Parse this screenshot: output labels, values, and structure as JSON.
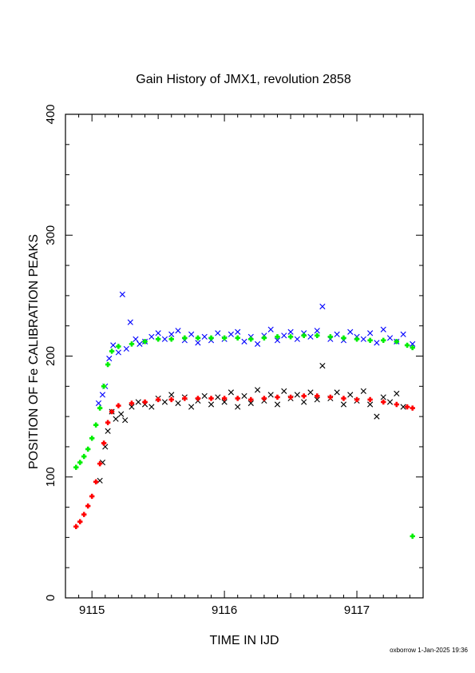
{
  "chart_data": {
    "type": "scatter",
    "title": "Gain History of JMX1, revolution 2858",
    "xlabel": "TIME IN IJD",
    "ylabel": "POSITION OF Fe CALIBRATION PEAKS",
    "xlim": [
      9114.8,
      9117.5
    ],
    "ylim": [
      0,
      400
    ],
    "x_ticks": [
      9115,
      9116,
      9117
    ],
    "x_tick_labels": [
      "9115",
      "9116",
      "9117"
    ],
    "y_ticks": [
      0,
      100,
      200,
      300,
      400
    ],
    "y_tick_labels": [
      "0",
      "100",
      "200",
      "300",
      "400"
    ],
    "grid": false,
    "legend": "none",
    "series": [
      {
        "marker": "x",
        "color": "#0000ff",
        "points": [
          [
            9115.05,
            161
          ],
          [
            9115.08,
            168
          ],
          [
            9115.1,
            175
          ],
          [
            9115.13,
            198
          ],
          [
            9115.16,
            209
          ],
          [
            9115.2,
            203
          ],
          [
            9115.23,
            251
          ],
          [
            9115.26,
            206
          ],
          [
            9115.29,
            228
          ],
          [
            9115.33,
            214
          ],
          [
            9115.36,
            210
          ],
          [
            9115.4,
            212
          ],
          [
            9115.45,
            216
          ],
          [
            9115.5,
            219
          ],
          [
            9115.55,
            214
          ],
          [
            9115.6,
            218
          ],
          [
            9115.65,
            221
          ],
          [
            9115.7,
            213
          ],
          [
            9115.75,
            218
          ],
          [
            9115.8,
            211
          ],
          [
            9115.85,
            216
          ],
          [
            9115.9,
            213
          ],
          [
            9115.95,
            219
          ],
          [
            9116.0,
            214
          ],
          [
            9116.05,
            218
          ],
          [
            9116.1,
            220
          ],
          [
            9116.15,
            212
          ],
          [
            9116.2,
            216
          ],
          [
            9116.25,
            210
          ],
          [
            9116.3,
            217
          ],
          [
            9116.35,
            222
          ],
          [
            9116.4,
            213
          ],
          [
            9116.45,
            217
          ],
          [
            9116.5,
            220
          ],
          [
            9116.55,
            214
          ],
          [
            9116.6,
            219
          ],
          [
            9116.65,
            216
          ],
          [
            9116.7,
            221
          ],
          [
            9116.74,
            241
          ],
          [
            9116.8,
            214
          ],
          [
            9116.85,
            218
          ],
          [
            9116.9,
            213
          ],
          [
            9116.95,
            220
          ],
          [
            9117.0,
            216
          ],
          [
            9117.05,
            214
          ],
          [
            9117.1,
            219
          ],
          [
            9117.15,
            211
          ],
          [
            9117.2,
            222
          ],
          [
            9117.25,
            215
          ],
          [
            9117.3,
            212
          ],
          [
            9117.35,
            218
          ],
          [
            9117.42,
            210
          ]
        ]
      },
      {
        "marker": "x",
        "color": "#000000",
        "points": [
          [
            9115.06,
            97
          ],
          [
            9115.08,
            112
          ],
          [
            9115.1,
            125
          ],
          [
            9115.12,
            138
          ],
          [
            9115.15,
            154
          ],
          [
            9115.18,
            148
          ],
          [
            9115.22,
            152
          ],
          [
            9115.25,
            147
          ],
          [
            9115.3,
            158
          ],
          [
            9115.35,
            162
          ],
          [
            9115.4,
            160
          ],
          [
            9115.45,
            158
          ],
          [
            9115.5,
            165
          ],
          [
            9115.55,
            162
          ],
          [
            9115.6,
            168
          ],
          [
            9115.65,
            161
          ],
          [
            9115.7,
            166
          ],
          [
            9115.75,
            158
          ],
          [
            9115.8,
            163
          ],
          [
            9115.85,
            167
          ],
          [
            9115.9,
            160
          ],
          [
            9115.95,
            166
          ],
          [
            9116.0,
            162
          ],
          [
            9116.05,
            170
          ],
          [
            9116.1,
            158
          ],
          [
            9116.15,
            167
          ],
          [
            9116.2,
            161
          ],
          [
            9116.25,
            172
          ],
          [
            9116.3,
            163
          ],
          [
            9116.35,
            168
          ],
          [
            9116.4,
            160
          ],
          [
            9116.45,
            171
          ],
          [
            9116.5,
            165
          ],
          [
            9116.55,
            168
          ],
          [
            9116.6,
            162
          ],
          [
            9116.65,
            170
          ],
          [
            9116.7,
            164
          ],
          [
            9116.74,
            192
          ],
          [
            9116.8,
            165
          ],
          [
            9116.85,
            170
          ],
          [
            9116.9,
            160
          ],
          [
            9116.95,
            168
          ],
          [
            9117.0,
            163
          ],
          [
            9117.05,
            171
          ],
          [
            9117.1,
            160
          ],
          [
            9117.15,
            150
          ],
          [
            9117.2,
            166
          ],
          [
            9117.25,
            162
          ],
          [
            9117.3,
            169
          ],
          [
            9117.35,
            158
          ]
        ]
      },
      {
        "marker": "+",
        "color": "#00ee00",
        "points": [
          [
            9114.88,
            108
          ],
          [
            9114.91,
            112
          ],
          [
            9114.94,
            117
          ],
          [
            9114.97,
            123
          ],
          [
            9115.0,
            132
          ],
          [
            9115.03,
            143
          ],
          [
            9115.06,
            157
          ],
          [
            9115.09,
            175
          ],
          [
            9115.12,
            193
          ],
          [
            9115.15,
            204
          ],
          [
            9115.2,
            208
          ],
          [
            9115.3,
            210
          ],
          [
            9115.4,
            212
          ],
          [
            9115.5,
            214
          ],
          [
            9115.6,
            214
          ],
          [
            9115.7,
            215
          ],
          [
            9115.8,
            215
          ],
          [
            9115.9,
            215
          ],
          [
            9116.0,
            215
          ],
          [
            9116.1,
            215
          ],
          [
            9116.2,
            214
          ],
          [
            9116.3,
            215
          ],
          [
            9116.4,
            216
          ],
          [
            9116.5,
            216
          ],
          [
            9116.6,
            217
          ],
          [
            9116.7,
            217
          ],
          [
            9116.8,
            216
          ],
          [
            9116.9,
            215
          ],
          [
            9117.0,
            214
          ],
          [
            9117.1,
            213
          ],
          [
            9117.2,
            213
          ],
          [
            9117.3,
            212
          ],
          [
            9117.38,
            209
          ],
          [
            9117.42,
            207
          ]
        ]
      },
      {
        "marker": "+",
        "color": "#00ee00",
        "points": [
          [
            9117.42,
            51
          ]
        ]
      },
      {
        "marker": "+",
        "color": "#ff0000",
        "points": [
          [
            9114.88,
            59
          ],
          [
            9114.91,
            63
          ],
          [
            9114.94,
            69
          ],
          [
            9114.97,
            76
          ],
          [
            9115.0,
            84
          ],
          [
            9115.03,
            96
          ],
          [
            9115.06,
            111
          ],
          [
            9115.09,
            128
          ],
          [
            9115.12,
            145
          ],
          [
            9115.15,
            154
          ],
          [
            9115.2,
            159
          ],
          [
            9115.3,
            161
          ],
          [
            9115.4,
            162
          ],
          [
            9115.5,
            164
          ],
          [
            9115.6,
            164
          ],
          [
            9115.7,
            165
          ],
          [
            9115.8,
            165
          ],
          [
            9115.9,
            165
          ],
          [
            9116.0,
            165
          ],
          [
            9116.1,
            165
          ],
          [
            9116.2,
            164
          ],
          [
            9116.3,
            165
          ],
          [
            9116.4,
            166
          ],
          [
            9116.5,
            166
          ],
          [
            9116.6,
            167
          ],
          [
            9116.7,
            167
          ],
          [
            9116.8,
            166
          ],
          [
            9116.9,
            165
          ],
          [
            9117.0,
            164
          ],
          [
            9117.1,
            164
          ],
          [
            9117.2,
            162
          ],
          [
            9117.3,
            160
          ],
          [
            9117.38,
            158
          ],
          [
            9117.42,
            157
          ]
        ]
      }
    ]
  },
  "footer": "oxborrow  1-Jan-2025 19:36"
}
